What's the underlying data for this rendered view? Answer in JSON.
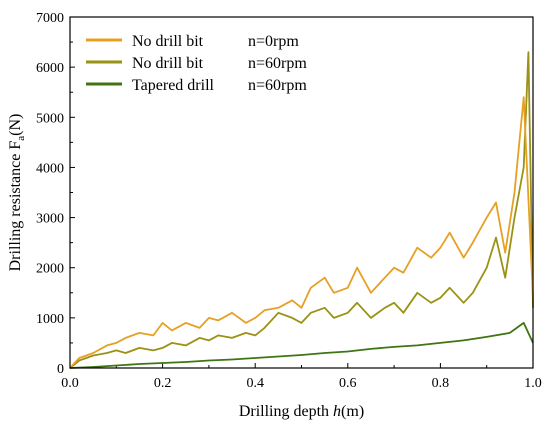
{
  "chart_data": {
    "type": "line",
    "xlim": [
      0.0,
      1.0
    ],
    "ylim": [
      0,
      7000
    ],
    "xticks": [
      "0.0",
      "0.2",
      "0.4",
      "0.6",
      "0.8",
      "1.0"
    ],
    "yticks": [
      "0",
      "1000",
      "2000",
      "3000",
      "4000",
      "5000",
      "6000",
      "7000"
    ],
    "xlabel": {
      "prefix": "Drilling depth ",
      "italic": "h",
      "suffix": "(m)"
    },
    "ylabel": {
      "prefix": "Drilling resistance F",
      "sub": "a",
      "suffix": "(N)"
    },
    "legend_position": "top-left",
    "series": [
      {
        "name": "No drill bit",
        "speed": "n=0rpm",
        "color": "#E6A023",
        "x": [
          0.0,
          0.02,
          0.05,
          0.08,
          0.1,
          0.12,
          0.15,
          0.18,
          0.2,
          0.22,
          0.25,
          0.28,
          0.3,
          0.32,
          0.35,
          0.38,
          0.4,
          0.42,
          0.45,
          0.48,
          0.5,
          0.52,
          0.55,
          0.57,
          0.6,
          0.62,
          0.65,
          0.68,
          0.7,
          0.72,
          0.75,
          0.78,
          0.8,
          0.82,
          0.85,
          0.87,
          0.9,
          0.92,
          0.94,
          0.96,
          0.98,
          1.0
        ],
        "y": [
          0,
          200,
          300,
          450,
          500,
          600,
          700,
          650,
          900,
          750,
          900,
          800,
          1000,
          950,
          1100,
          900,
          1000,
          1150,
          1200,
          1350,
          1200,
          1600,
          1800,
          1500,
          1600,
          2000,
          1500,
          1800,
          2000,
          1900,
          2400,
          2200,
          2400,
          2700,
          2200,
          2500,
          3000,
          3300,
          2300,
          3500,
          5400,
          1400
        ]
      },
      {
        "name": "No drill bit",
        "speed": "n=60rpm",
        "color": "#9A9215",
        "x": [
          0.0,
          0.02,
          0.05,
          0.08,
          0.1,
          0.12,
          0.15,
          0.18,
          0.2,
          0.22,
          0.25,
          0.28,
          0.3,
          0.32,
          0.35,
          0.38,
          0.4,
          0.42,
          0.45,
          0.48,
          0.5,
          0.52,
          0.55,
          0.57,
          0.6,
          0.62,
          0.65,
          0.68,
          0.7,
          0.72,
          0.75,
          0.78,
          0.8,
          0.82,
          0.85,
          0.87,
          0.9,
          0.92,
          0.94,
          0.96,
          0.98,
          0.99,
          1.0
        ],
        "y": [
          0,
          150,
          250,
          300,
          350,
          300,
          400,
          350,
          400,
          500,
          450,
          600,
          550,
          650,
          600,
          700,
          650,
          800,
          1100,
          1000,
          900,
          1100,
          1200,
          1000,
          1100,
          1300,
          1000,
          1200,
          1300,
          1100,
          1500,
          1300,
          1400,
          1600,
          1300,
          1500,
          2000,
          2600,
          1800,
          3000,
          4000,
          6300,
          1200
        ]
      },
      {
        "name": "Tapered drill",
        "speed": "n=60rpm",
        "color": "#3F7512",
        "x": [
          0.0,
          0.05,
          0.1,
          0.15,
          0.2,
          0.25,
          0.3,
          0.35,
          0.4,
          0.45,
          0.5,
          0.55,
          0.6,
          0.65,
          0.7,
          0.75,
          0.8,
          0.85,
          0.9,
          0.95,
          0.98,
          1.0
        ],
        "y": [
          0,
          20,
          50,
          80,
          100,
          120,
          150,
          170,
          200,
          230,
          260,
          300,
          330,
          380,
          420,
          450,
          500,
          550,
          620,
          700,
          900,
          500
        ]
      }
    ]
  }
}
